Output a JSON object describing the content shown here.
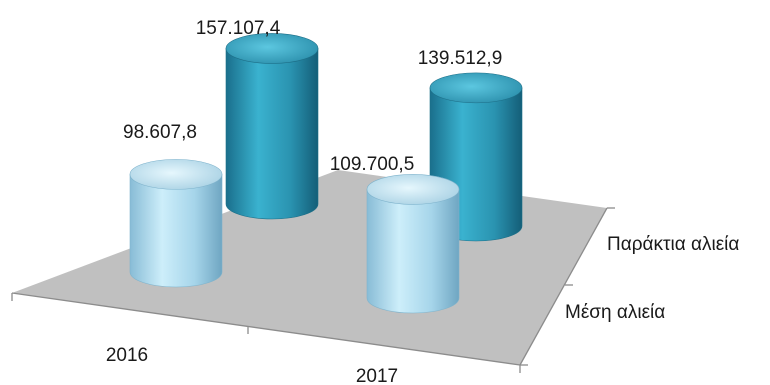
{
  "chart_data": {
    "type": "bar",
    "style": "3d-cylinder",
    "categories": [
      "2016",
      "2017"
    ],
    "series": [
      {
        "name": "Μέση αλιεία",
        "values": [
          98607.8,
          109700.5
        ],
        "labels": [
          "98.607,8",
          "109.700,5"
        ],
        "color": "#a8d8ee"
      },
      {
        "name": "Παράκτια αλιεία",
        "values": [
          157107.4,
          139512.9
        ],
        "labels": [
          "157.107,4",
          "139.512,9"
        ],
        "color": "#2a93b0"
      }
    ],
    "title": "",
    "xlabel": "",
    "ylabel": "",
    "floor_color": "#c0c0c0",
    "grid": false,
    "legend": "depth-axis-right"
  }
}
